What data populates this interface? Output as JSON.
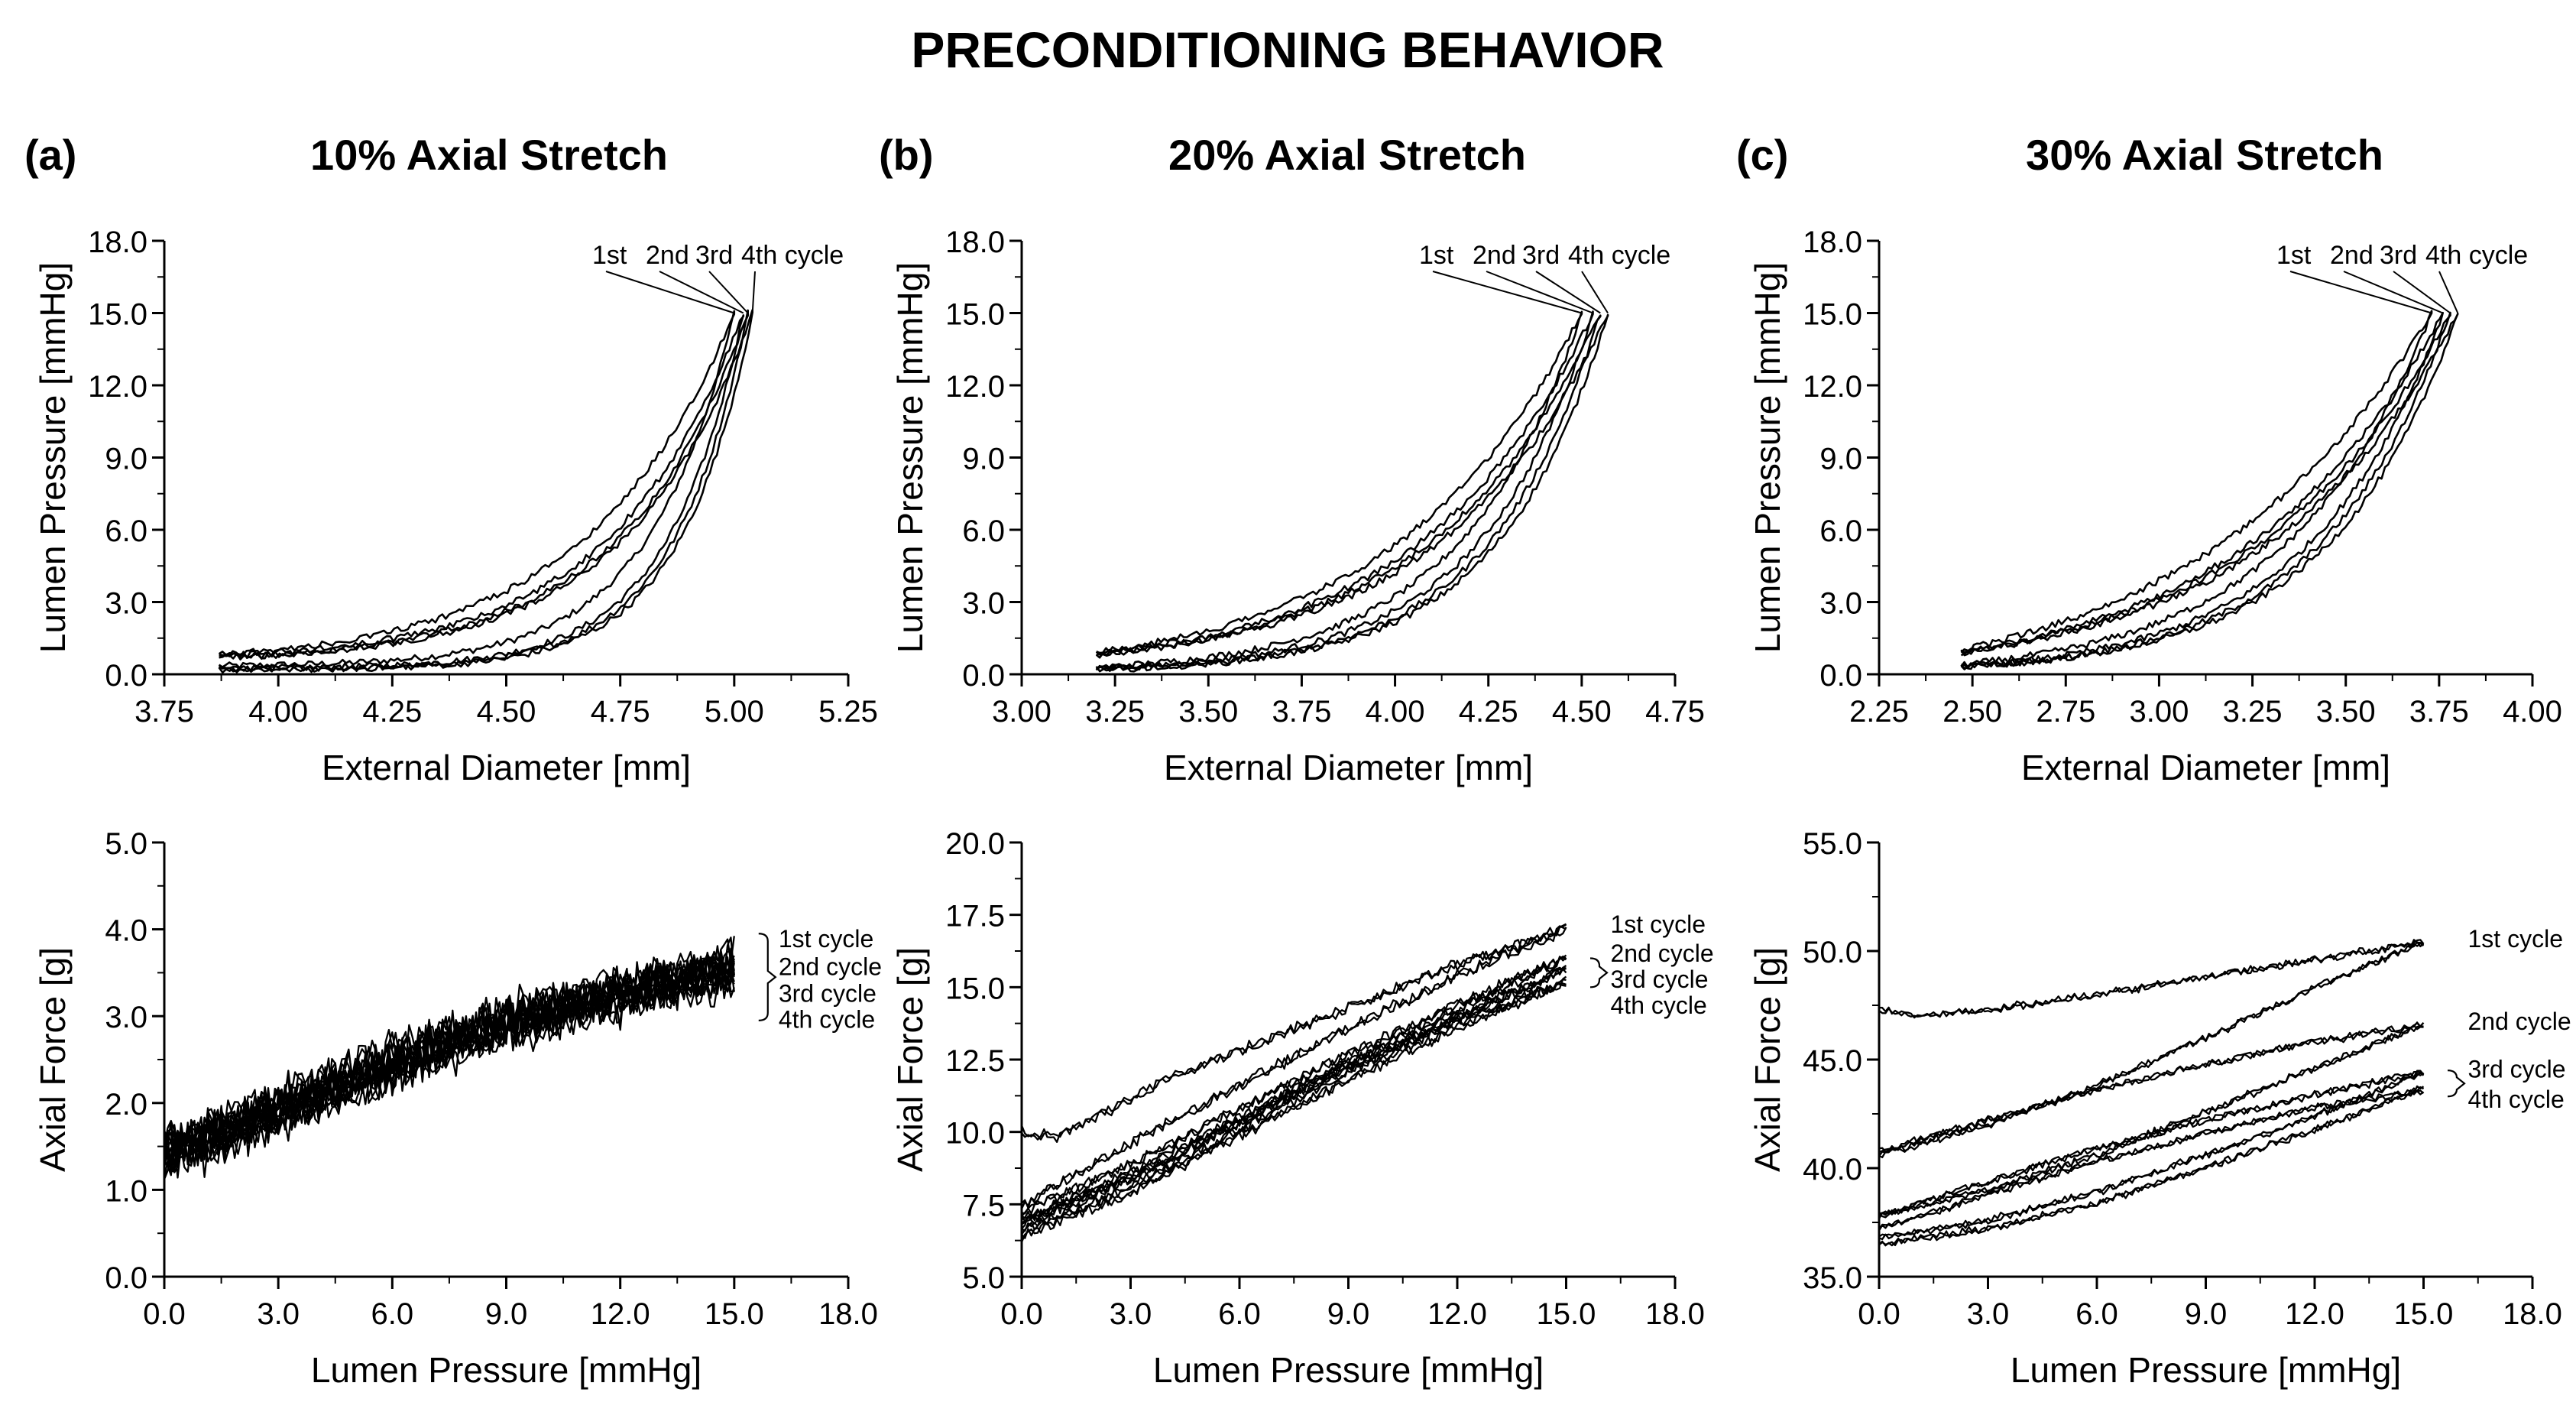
{
  "figure": {
    "title": "PRECONDITIONING BEHAVIOR",
    "columns": [
      {
        "letter": "(a)",
        "heading": "10% Axial Stretch"
      },
      {
        "letter": "(b)",
        "heading": "20% Axial Stretch"
      },
      {
        "letter": "(c)",
        "heading": "30% Axial Stretch"
      }
    ]
  },
  "chart_data": [
    {
      "id": "a-top",
      "type": "line",
      "xlabel": "External Diameter [mm]",
      "ylabel": "Lumen Pressure [mmHg]",
      "xlim": [
        3.75,
        5.25
      ],
      "ylim": [
        0,
        18
      ],
      "xticks": [
        "3.75",
        "4.00",
        "4.25",
        "4.50",
        "4.75",
        "5.00",
        "5.25"
      ],
      "yticks": [
        "0.0",
        "3.0",
        "6.0",
        "9.0",
        "12.0",
        "15.0",
        "18.0"
      ],
      "annotation": {
        "labels": [
          "1st",
          "2nd",
          "3rd",
          "4th cycle"
        ],
        "tips": [
          5.0,
          5.02,
          5.03,
          5.04
        ],
        "tip_y": 15.0
      },
      "series": [
        {
          "name": "1st cycle",
          "x0": 3.87,
          "apex_x": 5.0,
          "apex_y": 15.0,
          "load_base": 0.35,
          "load_k": 6.0,
          "unload_base": 0.8,
          "unload_k": 3.5
        },
        {
          "name": "2nd cycle",
          "x0": 3.87,
          "apex_x": 5.02,
          "apex_y": 15.0,
          "load_base": 0.25,
          "load_k": 7.0,
          "unload_base": 0.75,
          "unload_k": 4.0
        },
        {
          "name": "3rd cycle",
          "x0": 3.87,
          "apex_x": 5.03,
          "apex_y": 15.0,
          "load_base": 0.2,
          "load_k": 7.2,
          "unload_base": 0.7,
          "unload_k": 4.2
        },
        {
          "name": "4th cycle",
          "x0": 3.87,
          "apex_x": 5.04,
          "apex_y": 15.0,
          "load_base": 0.2,
          "load_k": 7.4,
          "unload_base": 0.7,
          "unload_k": 4.3
        }
      ]
    },
    {
      "id": "b-top",
      "type": "line",
      "xlabel": "External Diameter [mm]",
      "ylabel": "Lumen Pressure [mmHg]",
      "xlim": [
        3.0,
        4.75
      ],
      "ylim": [
        0,
        18
      ],
      "xticks": [
        "3.00",
        "3.25",
        "3.50",
        "3.75",
        "4.00",
        "4.25",
        "4.50",
        "4.75"
      ],
      "yticks": [
        "0.0",
        "3.0",
        "6.0",
        "9.0",
        "12.0",
        "15.0",
        "18.0"
      ],
      "annotation": {
        "labels": [
          "1st",
          "2nd",
          "3rd",
          "4th cycle"
        ],
        "tips": [
          4.5,
          4.53,
          4.55,
          4.57
        ],
        "tip_y": 15.0
      },
      "series": [
        {
          "name": "1st cycle",
          "x0": 3.2,
          "apex_x": 4.5,
          "apex_y": 15.0,
          "load_base": 0.3,
          "load_k": 4.0,
          "unload_base": 0.9,
          "unload_k": 2.6
        },
        {
          "name": "2nd cycle",
          "x0": 3.2,
          "apex_x": 4.53,
          "apex_y": 15.0,
          "load_base": 0.25,
          "load_k": 4.4,
          "unload_base": 0.85,
          "unload_k": 2.9
        },
        {
          "name": "3rd cycle",
          "x0": 3.2,
          "apex_x": 4.55,
          "apex_y": 15.0,
          "load_base": 0.2,
          "load_k": 4.6,
          "unload_base": 0.8,
          "unload_k": 3.0
        },
        {
          "name": "4th cycle",
          "x0": 3.2,
          "apex_x": 4.57,
          "apex_y": 15.0,
          "load_base": 0.2,
          "load_k": 4.7,
          "unload_base": 0.8,
          "unload_k": 3.1
        }
      ]
    },
    {
      "id": "c-top",
      "type": "line",
      "xlabel": "External Diameter [mm]",
      "ylabel": "Lumen Pressure [mmHg]",
      "xlim": [
        2.25,
        4.0
      ],
      "ylim": [
        0,
        18
      ],
      "xticks": [
        "2.25",
        "2.50",
        "2.75",
        "3.00",
        "3.25",
        "3.50",
        "3.75",
        "4.00"
      ],
      "yticks": [
        "0.0",
        "3.0",
        "6.0",
        "9.0",
        "12.0",
        "15.0",
        "18.0"
      ],
      "annotation": {
        "labels": [
          "1st",
          "2nd",
          "3rd",
          "4th cycle"
        ],
        "tips": [
          3.73,
          3.76,
          3.78,
          3.8
        ],
        "tip_y": 15.0
      },
      "series": [
        {
          "name": "1st cycle",
          "x0": 2.47,
          "apex_x": 3.73,
          "apex_y": 15.0,
          "load_base": 0.4,
          "load_k": 3.2,
          "unload_base": 1.0,
          "unload_k": 2.0
        },
        {
          "name": "2nd cycle",
          "x0": 2.47,
          "apex_x": 3.76,
          "apex_y": 15.0,
          "load_base": 0.3,
          "load_k": 3.6,
          "unload_base": 0.9,
          "unload_k": 2.4
        },
        {
          "name": "3rd cycle",
          "x0": 2.47,
          "apex_x": 3.78,
          "apex_y": 15.0,
          "load_base": 0.3,
          "load_k": 3.8,
          "unload_base": 0.9,
          "unload_k": 2.5
        },
        {
          "name": "4th cycle",
          "x0": 2.47,
          "apex_x": 3.8,
          "apex_y": 15.0,
          "load_base": 0.3,
          "load_k": 3.9,
          "unload_base": 0.9,
          "unload_k": 2.6
        }
      ]
    },
    {
      "id": "a-bottom",
      "type": "line",
      "xlabel": "Lumen Pressure [mmHg]",
      "ylabel": "Axial Force [g]",
      "xlim": [
        0,
        18
      ],
      "ylim": [
        0,
        5
      ],
      "xticks": [
        "0.0",
        "3.0",
        "6.0",
        "9.0",
        "12.0",
        "15.0",
        "18.0"
      ],
      "yticks": [
        "0.0",
        "1.0",
        "2.0",
        "3.0",
        "4.0",
        "5.0"
      ],
      "bracket": {
        "x": 15.2,
        "y_top": 3.95,
        "y_bottom": 2.95
      },
      "series": [
        {
          "name": "1st cycle",
          "label_y": 3.9,
          "load": [
            [
              0,
              1.45
            ],
            [
              2,
              1.75
            ],
            [
              5,
              2.3
            ],
            [
              8,
              2.8
            ],
            [
              11,
              3.2
            ],
            [
              14,
              3.5
            ],
            [
              15,
              3.7
            ]
          ],
          "unload": [
            [
              15,
              3.7
            ],
            [
              12,
              3.35
            ],
            [
              9,
              3.05
            ],
            [
              6,
              2.6
            ],
            [
              3,
              2.05
            ],
            [
              0,
              1.55
            ]
          ],
          "noise": 0.45
        },
        {
          "name": "2nd cycle",
          "label_y": 3.58,
          "load": [
            [
              0,
              1.4
            ],
            [
              2,
              1.7
            ],
            [
              5,
              2.25
            ],
            [
              8,
              2.75
            ],
            [
              11,
              3.15
            ],
            [
              14,
              3.45
            ],
            [
              15,
              3.6
            ]
          ],
          "unload": [
            [
              15,
              3.6
            ],
            [
              12,
              3.3
            ],
            [
              9,
              3.0
            ],
            [
              6,
              2.55
            ],
            [
              3,
              2.0
            ],
            [
              0,
              1.5
            ]
          ],
          "noise": 0.45
        },
        {
          "name": "3rd cycle",
          "label_y": 3.27,
          "load": [
            [
              0,
              1.35
            ],
            [
              2,
              1.65
            ],
            [
              5,
              2.2
            ],
            [
              8,
              2.7
            ],
            [
              11,
              3.1
            ],
            [
              14,
              3.4
            ],
            [
              15,
              3.5
            ]
          ],
          "unload": [
            [
              15,
              3.5
            ],
            [
              12,
              3.25
            ],
            [
              9,
              2.95
            ],
            [
              6,
              2.5
            ],
            [
              3,
              1.95
            ],
            [
              0,
              1.45
            ]
          ],
          "noise": 0.45
        },
        {
          "name": "4th cycle",
          "label_y": 2.97,
          "load": [
            [
              0,
              1.3
            ],
            [
              2,
              1.6
            ],
            [
              5,
              2.15
            ],
            [
              8,
              2.65
            ],
            [
              11,
              3.05
            ],
            [
              14,
              3.35
            ],
            [
              15,
              3.45
            ]
          ],
          "unload": [
            [
              15,
              3.45
            ],
            [
              12,
              3.2
            ],
            [
              9,
              2.9
            ],
            [
              6,
              2.45
            ],
            [
              3,
              1.9
            ],
            [
              0,
              1.4
            ]
          ],
          "noise": 0.45
        }
      ]
    },
    {
      "id": "b-bottom",
      "type": "line",
      "xlabel": "Lumen Pressure [mmHg]",
      "ylabel": "Axial Force [g]",
      "xlim": [
        0,
        18
      ],
      "ylim": [
        5,
        20
      ],
      "xticks": [
        "0.0",
        "3.0",
        "6.0",
        "9.0",
        "12.0",
        "15.0",
        "18.0"
      ],
      "yticks": [
        "5.0",
        "7.5",
        "10.0",
        "12.5",
        "15.0",
        "17.5",
        "20.0"
      ],
      "bracket": {
        "x": 15.2,
        "y_top": 16.0,
        "y_bottom": 15.0
      },
      "series": [
        {
          "name": "1st cycle",
          "label_y": 17.2,
          "load": [
            [
              0,
              10.0
            ],
            [
              1,
              9.8
            ],
            [
              2,
              10.5
            ],
            [
              4,
              11.8
            ],
            [
              6,
              12.8
            ],
            [
              9,
              14.3
            ],
            [
              12,
              15.8
            ],
            [
              15,
              17.0
            ]
          ],
          "unload": [
            [
              15,
              17.0
            ],
            [
              12,
              15.4
            ],
            [
              9,
              13.6
            ],
            [
              6,
              11.6
            ],
            [
              3,
              9.6
            ],
            [
              0,
              7.5
            ]
          ],
          "noise": 0.35
        },
        {
          "name": "2nd cycle",
          "label_y": 16.2,
          "load": [
            [
              0,
              7.2
            ],
            [
              3,
              8.9
            ],
            [
              6,
              10.8
            ],
            [
              9,
              12.7
            ],
            [
              12,
              14.4
            ],
            [
              15,
              16.0
            ]
          ],
          "unload": [
            [
              15,
              16.0
            ],
            [
              12,
              14.2
            ],
            [
              9,
              12.4
            ],
            [
              6,
              10.4
            ],
            [
              3,
              8.4
            ],
            [
              0,
              6.8
            ]
          ],
          "noise": 0.35
        },
        {
          "name": "3rd cycle",
          "label_y": 15.3,
          "load": [
            [
              0,
              7.0
            ],
            [
              3,
              8.6
            ],
            [
              6,
              10.5
            ],
            [
              9,
              12.4
            ],
            [
              12,
              14.0
            ],
            [
              15,
              15.6
            ]
          ],
          "unload": [
            [
              15,
              15.6
            ],
            [
              12,
              13.9
            ],
            [
              9,
              12.1
            ],
            [
              6,
              10.1
            ],
            [
              3,
              8.1
            ],
            [
              0,
              6.6
            ]
          ],
          "noise": 0.35
        },
        {
          "name": "4th cycle",
          "label_y": 14.4,
          "load": [
            [
              0,
              6.9
            ],
            [
              3,
              8.4
            ],
            [
              6,
              10.3
            ],
            [
              9,
              12.2
            ],
            [
              12,
              13.8
            ],
            [
              15,
              15.2
            ]
          ],
          "unload": [
            [
              15,
              15.2
            ],
            [
              12,
              13.6
            ],
            [
              9,
              11.8
            ],
            [
              6,
              9.9
            ],
            [
              3,
              7.9
            ],
            [
              0,
              6.4
            ]
          ],
          "noise": 0.35
        }
      ]
    },
    {
      "id": "c-bottom",
      "type": "line",
      "xlabel": "Lumen Pressure [mmHg]",
      "ylabel": "Axial Force [g]",
      "xlim": [
        0,
        18
      ],
      "ylim": [
        35,
        55
      ],
      "xticks": [
        "0.0",
        "3.0",
        "6.0",
        "9.0",
        "12.0",
        "15.0",
        "18.0"
      ],
      "yticks": [
        "35.0",
        "40.0",
        "45.0",
        "50.0",
        "55.0"
      ],
      "bracket": {
        "x": 15.2,
        "y_top": 44.5,
        "y_bottom": 43.3
      },
      "series": [
        {
          "name": "1st cycle",
          "label_y": 50.6,
          "load": [
            [
              0,
              47.3
            ],
            [
              1,
              47.0
            ],
            [
              3,
              47.3
            ],
            [
              6,
              48.0
            ],
            [
              9,
              48.8
            ],
            [
              12,
              49.6
            ],
            [
              15,
              50.4
            ]
          ],
          "unload": [
            [
              15,
              50.4
            ],
            [
              12,
              48.3
            ],
            [
              9,
              46.0
            ],
            [
              6,
              43.8
            ],
            [
              3,
              42.0
            ],
            [
              0,
              40.6
            ]
          ],
          "noise": 0.3
        },
        {
          "name": "2nd cycle",
          "label_y": 46.8,
          "load": [
            [
              0,
              40.8
            ],
            [
              3,
              42.2
            ],
            [
              6,
              43.6
            ],
            [
              9,
              44.8
            ],
            [
              12,
              45.8
            ],
            [
              15,
              46.6
            ]
          ],
          "unload": [
            [
              15,
              46.6
            ],
            [
              12,
              44.6
            ],
            [
              9,
              42.6
            ],
            [
              6,
              40.6
            ],
            [
              3,
              39.0
            ],
            [
              0,
              37.8
            ]
          ],
          "noise": 0.3
        },
        {
          "name": "3rd cycle",
          "label_y": 44.6,
          "load": [
            [
              0,
              37.8
            ],
            [
              3,
              39.4
            ],
            [
              6,
              40.9
            ],
            [
              9,
              42.2
            ],
            [
              12,
              43.4
            ],
            [
              15,
              44.4
            ]
          ],
          "unload": [
            [
              15,
              44.4
            ],
            [
              12,
              42.4
            ],
            [
              9,
              40.6
            ],
            [
              6,
              38.9
            ],
            [
              3,
              37.6
            ],
            [
              0,
              36.8
            ]
          ],
          "noise": 0.3
        },
        {
          "name": "4th cycle",
          "label_y": 43.2,
          "load": [
            [
              0,
              37.2
            ],
            [
              3,
              38.8
            ],
            [
              6,
              40.3
            ],
            [
              9,
              41.6
            ],
            [
              12,
              42.8
            ],
            [
              15,
              43.6
            ]
          ],
          "unload": [
            [
              15,
              43.6
            ],
            [
              12,
              41.8
            ],
            [
              9,
              40.0
            ],
            [
              6,
              38.4
            ],
            [
              3,
              37.2
            ],
            [
              0,
              36.5
            ]
          ],
          "noise": 0.3
        }
      ]
    }
  ]
}
